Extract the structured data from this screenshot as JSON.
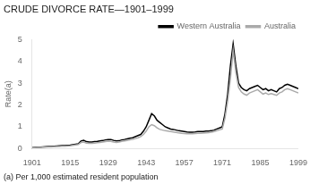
{
  "chart_data": {
    "type": "line",
    "title": "CRUDE DIVORCE RATE—1901–1999",
    "ylabel": "Rate(a)",
    "footnote": "(a) Per 1,000 estimated resident population",
    "xlim": [
      1901,
      1999
    ],
    "ylim": [
      0,
      5
    ],
    "xticks": [
      1901,
      1915,
      1929,
      1943,
      1957,
      1971,
      1985,
      1999
    ],
    "yticks": [
      0,
      1,
      2,
      3,
      4,
      5
    ],
    "grid": false,
    "legend": "top",
    "x": [
      1901,
      1902,
      1903,
      1904,
      1905,
      1906,
      1907,
      1908,
      1909,
      1910,
      1911,
      1912,
      1913,
      1914,
      1915,
      1916,
      1917,
      1918,
      1919,
      1920,
      1921,
      1922,
      1923,
      1924,
      1925,
      1926,
      1927,
      1928,
      1929,
      1930,
      1931,
      1932,
      1933,
      1934,
      1935,
      1936,
      1937,
      1938,
      1939,
      1940,
      1941,
      1942,
      1943,
      1944,
      1945,
      1946,
      1947,
      1948,
      1949,
      1950,
      1951,
      1952,
      1953,
      1954,
      1955,
      1956,
      1957,
      1958,
      1959,
      1960,
      1961,
      1962,
      1963,
      1964,
      1965,
      1966,
      1967,
      1968,
      1969,
      1970,
      1971,
      1972,
      1973,
      1974,
      1975,
      1976,
      1977,
      1978,
      1979,
      1980,
      1981,
      1982,
      1983,
      1984,
      1985,
      1986,
      1987,
      1988,
      1989,
      1990,
      1991,
      1992,
      1993,
      1994,
      1995,
      1996,
      1997,
      1998,
      1999
    ],
    "series": [
      {
        "name": "Australia",
        "color": "#aaaaaa",
        "values": [
          0.05,
          0.05,
          0.06,
          0.06,
          0.07,
          0.07,
          0.08,
          0.08,
          0.09,
          0.1,
          0.1,
          0.11,
          0.11,
          0.12,
          0.13,
          0.15,
          0.17,
          0.19,
          0.28,
          0.3,
          0.25,
          0.24,
          0.24,
          0.25,
          0.27,
          0.28,
          0.3,
          0.32,
          0.34,
          0.33,
          0.3,
          0.28,
          0.3,
          0.33,
          0.35,
          0.37,
          0.4,
          0.42,
          0.46,
          0.5,
          0.55,
          0.65,
          0.8,
          1.0,
          1.1,
          1.05,
          0.95,
          0.88,
          0.85,
          0.82,
          0.8,
          0.78,
          0.76,
          0.74,
          0.72,
          0.7,
          0.69,
          0.68,
          0.68,
          0.68,
          0.69,
          0.7,
          0.7,
          0.71,
          0.72,
          0.73,
          0.75,
          0.78,
          0.82,
          0.86,
          0.9,
          1.4,
          2.2,
          3.2,
          4.5,
          3.5,
          2.8,
          2.6,
          2.5,
          2.45,
          2.55,
          2.6,
          2.65,
          2.7,
          2.6,
          2.5,
          2.55,
          2.48,
          2.52,
          2.48,
          2.44,
          2.55,
          2.6,
          2.7,
          2.75,
          2.7,
          2.65,
          2.6,
          2.55
        ]
      },
      {
        "name": "Western Australia",
        "color": "#000000",
        "values": [
          0.05,
          0.06,
          0.07,
          0.07,
          0.08,
          0.09,
          0.1,
          0.1,
          0.11,
          0.12,
          0.13,
          0.14,
          0.14,
          0.15,
          0.16,
          0.18,
          0.2,
          0.22,
          0.35,
          0.38,
          0.32,
          0.3,
          0.3,
          0.32,
          0.33,
          0.35,
          0.37,
          0.4,
          0.42,
          0.42,
          0.38,
          0.35,
          0.36,
          0.4,
          0.42,
          0.45,
          0.48,
          0.5,
          0.55,
          0.6,
          0.65,
          0.8,
          1.0,
          1.3,
          1.6,
          1.5,
          1.3,
          1.2,
          1.1,
          1.0,
          0.95,
          0.9,
          0.88,
          0.85,
          0.82,
          0.8,
          0.78,
          0.76,
          0.75,
          0.75,
          0.76,
          0.78,
          0.78,
          0.78,
          0.8,
          0.8,
          0.82,
          0.85,
          0.9,
          0.95,
          1.0,
          1.6,
          2.5,
          3.8,
          4.8,
          3.8,
          3.0,
          2.8,
          2.7,
          2.65,
          2.75,
          2.8,
          2.85,
          2.9,
          2.8,
          2.7,
          2.75,
          2.65,
          2.7,
          2.65,
          2.6,
          2.75,
          2.8,
          2.9,
          2.95,
          2.9,
          2.85,
          2.8,
          2.75
        ]
      }
    ]
  }
}
